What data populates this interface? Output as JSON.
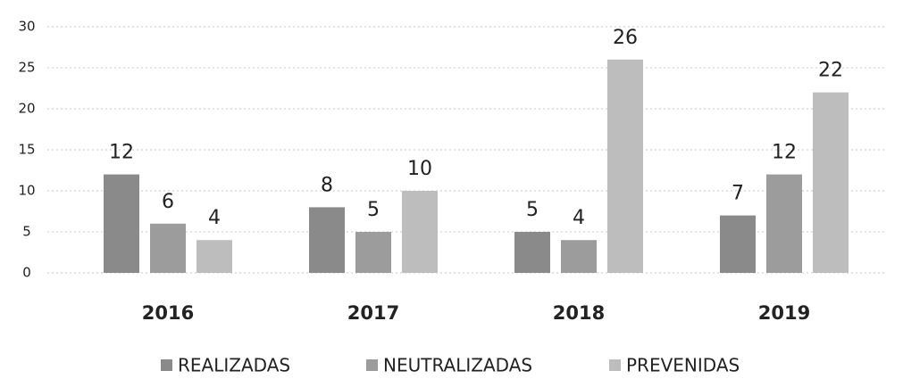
{
  "chart_data": {
    "type": "bar",
    "categories": [
      "2016",
      "2017",
      "2018",
      "2019"
    ],
    "series": [
      {
        "name": "REALIZADAS",
        "color": "#8a8a8a",
        "values": [
          12,
          8,
          5,
          7
        ]
      },
      {
        "name": "NEUTRALIZADAS",
        "color": "#9c9c9c",
        "values": [
          6,
          5,
          4,
          12
        ]
      },
      {
        "name": "PREVENIDAS",
        "color": "#bdbdbd",
        "values": [
          4,
          10,
          26,
          22
        ]
      }
    ],
    "ylim": [
      0,
      30
    ],
    "yticks": [
      0,
      5,
      10,
      15,
      20,
      25,
      30
    ],
    "grid": true,
    "legend": "bottom"
  }
}
